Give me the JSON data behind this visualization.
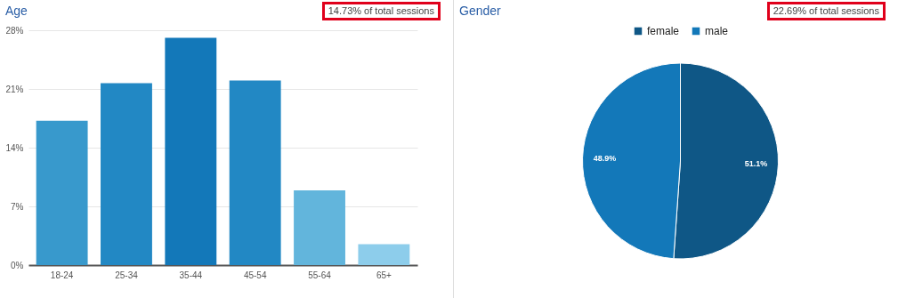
{
  "chart_data": [
    {
      "type": "bar",
      "title": "Age",
      "annotations": [
        "14.73% of total sessions"
      ],
      "categories": [
        "18-24",
        "25-34",
        "35-44",
        "45-54",
        "55-64",
        "65+"
      ],
      "values": [
        17.2,
        21.7,
        27.1,
        22.0,
        8.9,
        2.5
      ],
      "colors": [
        "#3899cc",
        "#2288c4",
        "#1378b9",
        "#2288c4",
        "#62b5dc",
        "#8dcdeb"
      ],
      "ylim": [
        0,
        28
      ],
      "yticks": [
        {
          "value": 0,
          "label": "0%"
        },
        {
          "value": 7,
          "label": "7%"
        },
        {
          "value": 14,
          "label": "14%"
        },
        {
          "value": 21,
          "label": "21%"
        },
        {
          "value": 28,
          "label": "28%"
        }
      ],
      "grid": "y"
    },
    {
      "type": "pie",
      "title": "Gender",
      "annotations": [
        "22.69% of total sessions"
      ],
      "categories": [
        "female",
        "male"
      ],
      "values": [
        51.1,
        48.9
      ],
      "colors": [
        "#0f5786",
        "#1378b9"
      ],
      "value_labels": [
        "51.1%",
        "48.9%"
      ],
      "legend": "top"
    }
  ]
}
